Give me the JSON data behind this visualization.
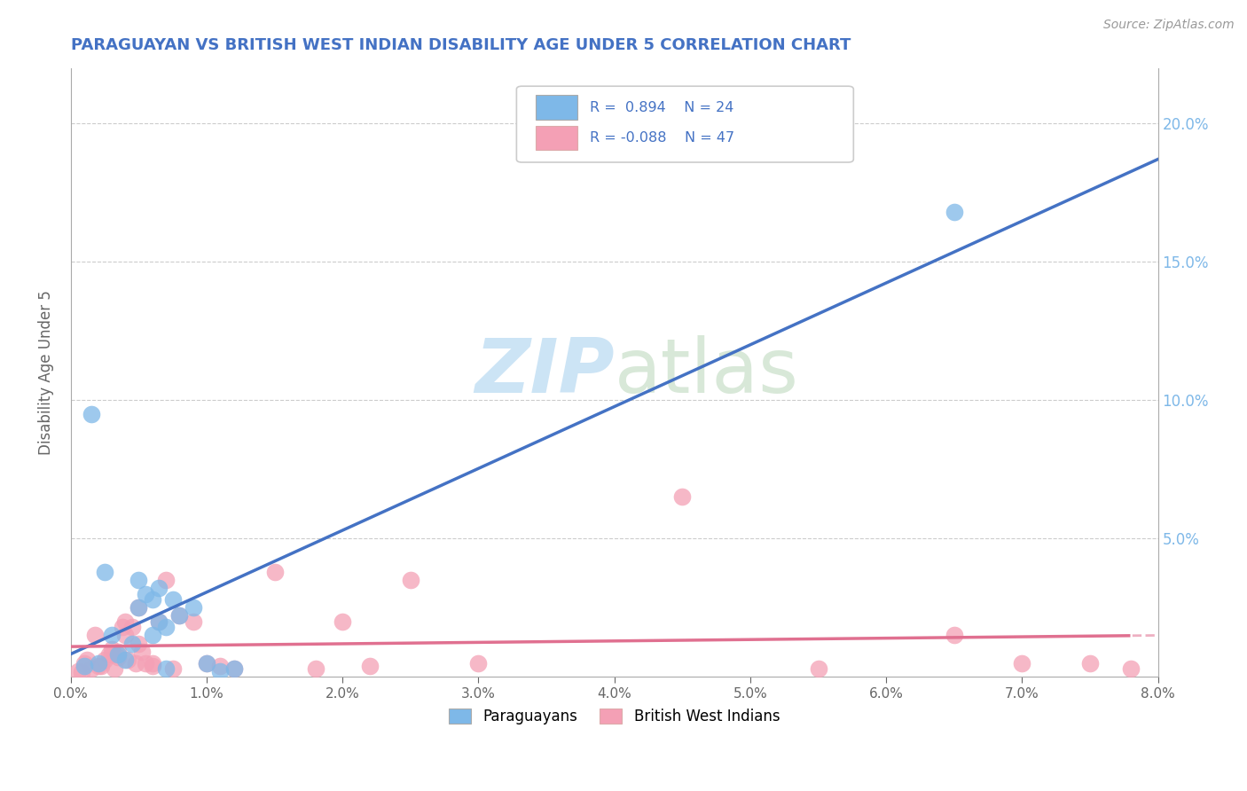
{
  "title": "PARAGUAYAN VS BRITISH WEST INDIAN DISABILITY AGE UNDER 5 CORRELATION CHART",
  "source": "Source: ZipAtlas.com",
  "ylabel": "Disability Age Under 5",
  "xlim": [
    0.0,
    8.0
  ],
  "ylim": [
    0.0,
    22.0
  ],
  "background_color": "#ffffff",
  "watermark_zip": "ZIP",
  "watermark_atlas": "atlas",
  "blue_color": "#7eb8e8",
  "pink_color": "#f4a0b5",
  "line_blue": "#4472c4",
  "line_pink": "#e07090",
  "title_color": "#4472c4",
  "paraguayan_x": [
    0.2,
    0.3,
    0.35,
    0.4,
    0.5,
    0.5,
    0.55,
    0.6,
    0.6,
    0.65,
    0.65,
    0.7,
    0.7,
    0.75,
    0.8,
    0.9,
    1.0,
    1.1,
    1.2,
    0.1,
    0.15,
    0.25,
    6.5,
    0.45
  ],
  "paraguayan_y": [
    0.5,
    1.5,
    0.8,
    0.6,
    3.5,
    2.5,
    3.0,
    2.8,
    1.5,
    3.2,
    2.0,
    0.3,
    1.8,
    2.8,
    2.2,
    2.5,
    0.5,
    0.2,
    0.3,
    0.4,
    9.5,
    3.8,
    16.8,
    1.2
  ],
  "bwi_x": [
    0.1,
    0.15,
    0.2,
    0.25,
    0.3,
    0.3,
    0.35,
    0.35,
    0.4,
    0.4,
    0.45,
    0.5,
    0.5,
    0.55,
    0.6,
    0.65,
    0.7,
    0.75,
    0.8,
    0.9,
    1.0,
    1.1,
    1.2,
    1.5,
    1.8,
    2.0,
    2.2,
    2.5,
    3.0,
    0.05,
    0.08,
    0.12,
    0.18,
    0.22,
    0.28,
    0.32,
    0.38,
    0.42,
    0.48,
    0.52,
    4.5,
    5.5,
    6.5,
    7.0,
    7.5,
    7.8,
    0.6
  ],
  "bwi_y": [
    0.5,
    0.3,
    0.4,
    0.6,
    1.0,
    0.8,
    0.7,
    0.9,
    2.0,
    1.5,
    1.8,
    2.5,
    1.2,
    0.5,
    0.4,
    2.0,
    3.5,
    0.3,
    2.2,
    2.0,
    0.5,
    0.4,
    0.3,
    3.8,
    0.3,
    2.0,
    0.4,
    3.5,
    0.5,
    0.2,
    0.15,
    0.6,
    1.5,
    0.4,
    0.8,
    0.3,
    1.8,
    0.6,
    0.5,
    0.9,
    6.5,
    0.3,
    1.5,
    0.5,
    0.5,
    0.3,
    0.5
  ],
  "grid_color": "#cccccc",
  "right_axis_color": "#7eb8e8",
  "r_blue": "0.894",
  "n_blue": "24",
  "r_pink": "-0.088",
  "n_pink": "47"
}
